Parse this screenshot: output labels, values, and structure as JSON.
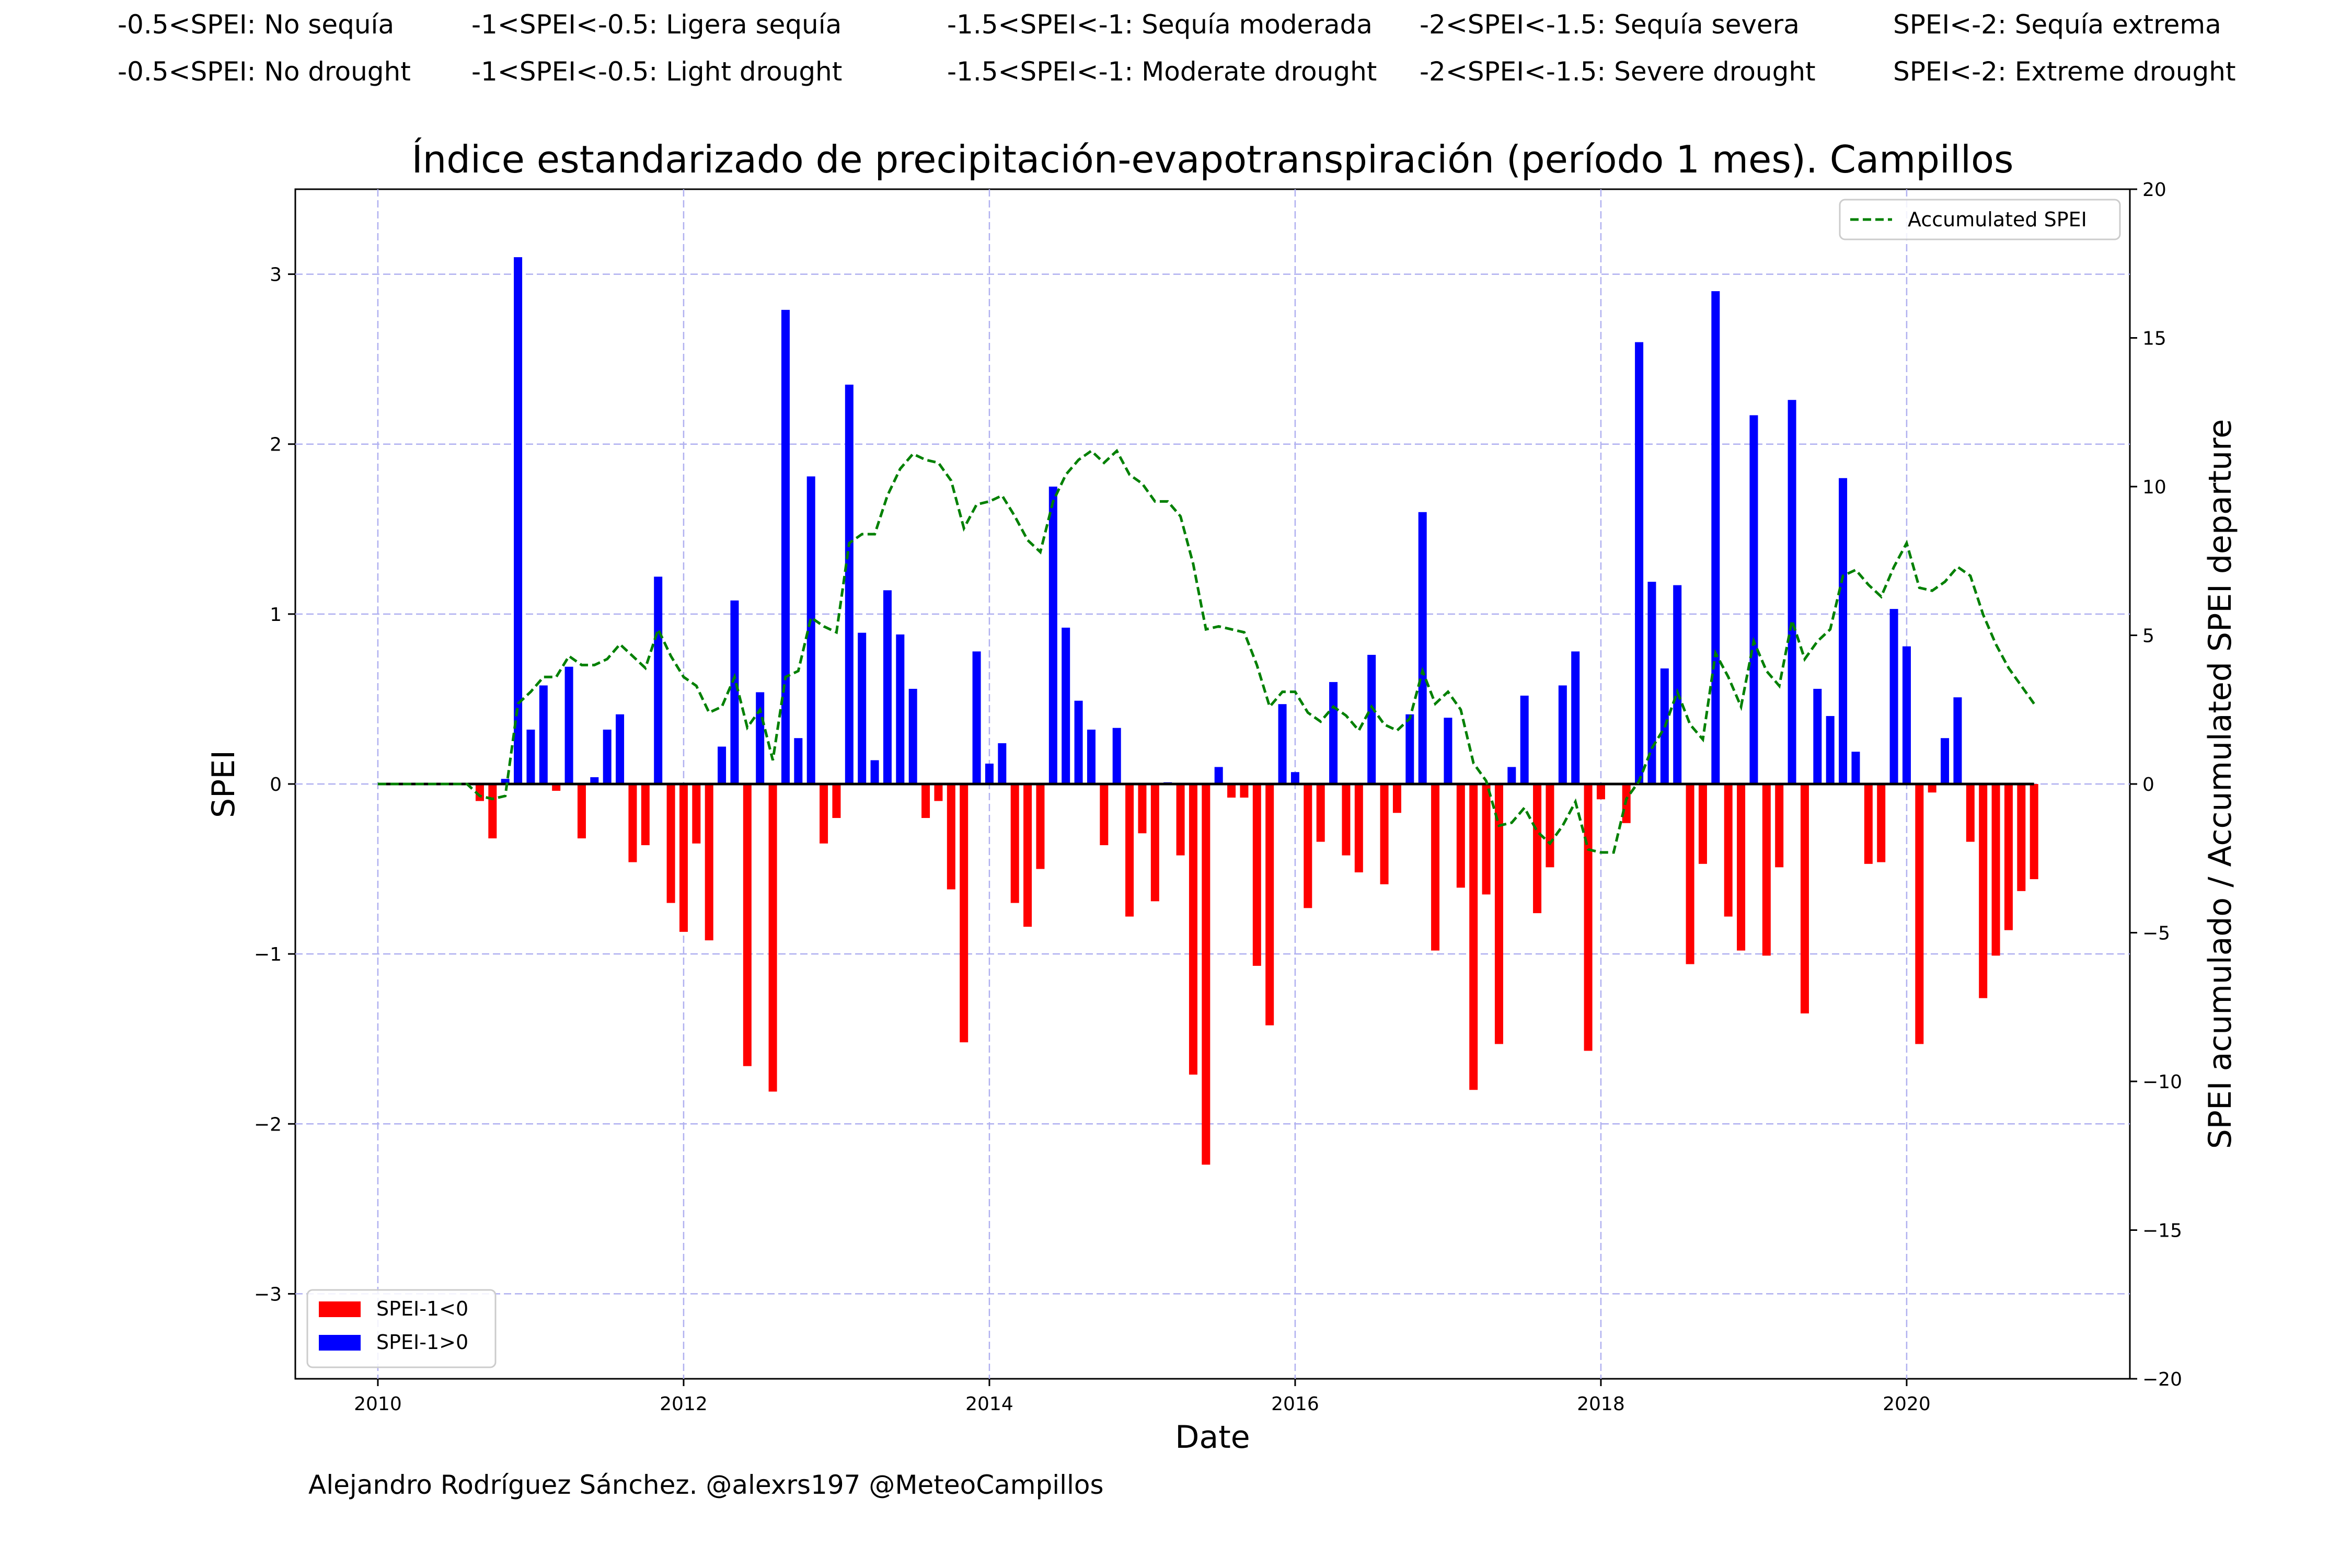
{
  "classification": {
    "spanish": [
      "-0.5<SPEI: No sequía",
      "-1<SPEI<-0.5: Ligera sequía",
      "-1.5<SPEI<-1: Sequía moderada",
      "-2<SPEI<-1.5: Sequía severa",
      "SPEI<-2: Sequía extrema"
    ],
    "english": [
      "-0.5<SPEI: No drought",
      "-1<SPEI<-0.5: Light drought",
      "-1.5<SPEI<-1: Moderate drought",
      "-2<SPEI<-1.5: Severe drought",
      "SPEI<-2: Extreme drought"
    ]
  },
  "credit": "Alejandro Rodríguez Sánchez. @alexrs197 @MeteoCampillos",
  "chart_data": {
    "type": "bar",
    "title": "Índice estandarizado de precipitación-evapotranspiración (período 1 mes). Campillos",
    "xlabel": "Date",
    "ylabel": "SPEI",
    "y2label": "SPEI acumulado / Accumulated SPEI departure",
    "xlim": [
      2009.46,
      2021.46
    ],
    "ylim": [
      -3.5,
      3.5
    ],
    "y2lim": [
      -20,
      20
    ],
    "xticks": [
      2010,
      2012,
      2014,
      2016,
      2018,
      2020
    ],
    "yticks": [
      -3,
      -2,
      -1,
      0,
      1,
      2,
      3
    ],
    "y2ticks": [
      -20,
      -15,
      -10,
      -5,
      0,
      5,
      10,
      15,
      20
    ],
    "grid": true,
    "colors": {
      "negative": "#ff0000",
      "positive": "#0000ff",
      "accumulated": "#008000",
      "grid": "#b0b0f0"
    },
    "legend_bars": {
      "position": "lower-left",
      "entries": [
        {
          "label": "SPEI-1<0",
          "color": "#ff0000"
        },
        {
          "label": "SPEI-1>0",
          "color": "#0000ff"
        }
      ]
    },
    "legend_line": {
      "position": "upper-right",
      "label": "Accumulated SPEI"
    },
    "start_date": "2010-01",
    "spei": [
      0,
      0,
      0,
      0,
      0,
      0,
      0,
      0,
      -0.1,
      -0.32,
      0.03,
      3.1,
      0.32,
      0.58,
      -0.04,
      0.69,
      -0.32,
      0.04,
      0.32,
      0.41,
      -0.46,
      -0.36,
      1.22,
      -0.7,
      -0.87,
      -0.35,
      -0.92,
      0.22,
      1.08,
      -1.66,
      0.54,
      -1.81,
      2.79,
      0.27,
      1.81,
      -0.35,
      -0.2,
      2.35,
      0.89,
      0.14,
      1.14,
      0.88,
      0.56,
      -0.2,
      -0.1,
      -0.62,
      -1.52,
      0.78,
      0.12,
      0.24,
      -0.7,
      -0.84,
      -0.5,
      1.75,
      0.92,
      0.49,
      0.32,
      -0.36,
      0.33,
      -0.78,
      -0.29,
      -0.69,
      0.01,
      -0.42,
      -1.71,
      -2.24,
      0.1,
      -0.08,
      -0.08,
      -1.07,
      -1.42,
      0.47,
      0.07,
      -0.73,
      -0.34,
      0.6,
      -0.42,
      -0.52,
      0.76,
      -0.59,
      -0.17,
      0.41,
      1.6,
      -0.98,
      0.39,
      -0.61,
      -1.8,
      -0.65,
      -1.53,
      0.1,
      0.52,
      -0.76,
      -0.49,
      0.58,
      0.78,
      -1.57,
      -0.09,
      0,
      -0.23,
      2.6,
      1.19,
      0.68,
      1.17,
      -1.06,
      -0.47,
      2.9,
      -0.78,
      -0.98,
      2.17,
      -1.01,
      -0.49,
      2.26,
      -1.35,
      0.56,
      0.4,
      1.8,
      0.19,
      -0.47,
      -0.46,
      1.03,
      0.81,
      -1.53,
      -0.05,
      0.27,
      0.51,
      -0.34,
      -1.26,
      -1.01,
      -0.86,
      -0.63,
      -0.56
    ],
    "accumulated": [
      0,
      0,
      0,
      0,
      0,
      0,
      0,
      0,
      -0.4,
      -0.5,
      -0.4,
      2.7,
      3.1,
      3.6,
      3.6,
      4.3,
      4,
      4,
      4.2,
      4.7,
      4.3,
      3.9,
      5.2,
      4.3,
      3.6,
      3.3,
      2.4,
      2.6,
      3.6,
      1.9,
      2.5,
      0.8,
      3.6,
      3.8,
      5.6,
      5.3,
      5.1,
      8.1,
      8.4,
      8.4,
      9.7,
      10.6,
      11.1,
      10.9,
      10.8,
      10.2,
      8.6,
      9.4,
      9.5,
      9.7,
      9.0,
      8.2,
      7.8,
      9.5,
      10.4,
      10.9,
      11.2,
      10.8,
      11.2,
      10.4,
      10.1,
      9.5,
      9.5,
      9.0,
      7.4,
      5.2,
      5.3,
      5.2,
      5.1,
      4.0,
      2.6,
      3.1,
      3.1,
      2.4,
      2.1,
      2.6,
      2.3,
      1.8,
      2.6,
      2.0,
      1.8,
      2.2,
      3.8,
      2.7,
      3.1,
      2.5,
      0.7,
      0.1,
      -1.4,
      -1.3,
      -0.8,
      -1.6,
      -2.0,
      -1.4,
      -0.6,
      -2.2,
      -2.3,
      -2.3,
      -0.5,
      0.1,
      1.2,
      1.9,
      3.1,
      2.0,
      1.5,
      4.4,
      3.6,
      2.6,
      4.8,
      3.8,
      3.3,
      5.5,
      4.2,
      4.8,
      5.2,
      7.0,
      7.2,
      6.7,
      6.3,
      7.3,
      8.1,
      6.6,
      6.5,
      6.8,
      7.3,
      7.0,
      5.7,
      4.7,
      3.9,
      3.3,
      2.7
    ]
  }
}
